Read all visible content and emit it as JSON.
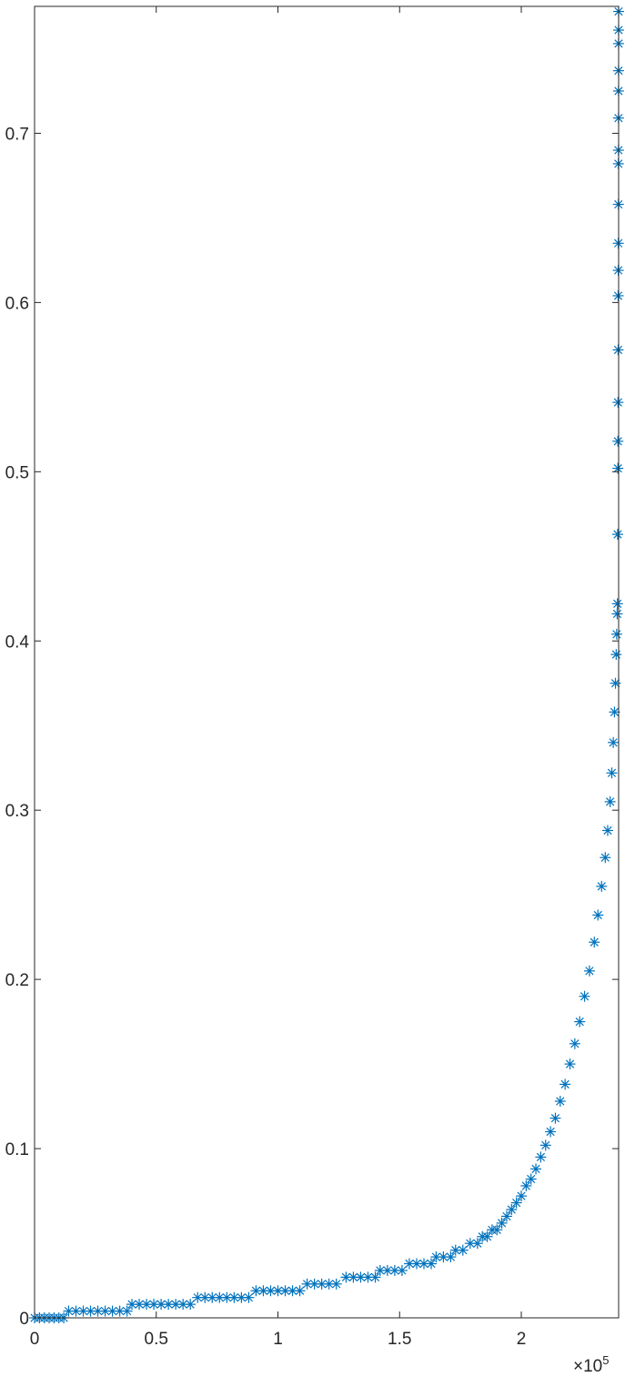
{
  "chart_data": {
    "type": "scatter",
    "title": "",
    "xlabel": "",
    "ylabel": "",
    "xlim": [
      0,
      240000
    ],
    "ylim": [
      0,
      0.775
    ],
    "grid": false,
    "legend": "none",
    "marker": "asterisk",
    "marker_color": "#0072BD",
    "x_exponent_label": "×10",
    "x_exponent_power": "5",
    "x_ticks": [
      {
        "value": 0,
        "label": "0"
      },
      {
        "value": 50000,
        "label": "0.5"
      },
      {
        "value": 100000,
        "label": "1"
      },
      {
        "value": 150000,
        "label": "1.5"
      },
      {
        "value": 200000,
        "label": "2"
      }
    ],
    "y_ticks": [
      {
        "value": 0,
        "label": "0"
      },
      {
        "value": 0.1,
        "label": "0.1"
      },
      {
        "value": 0.2,
        "label": "0.2"
      },
      {
        "value": 0.3,
        "label": "0.3"
      },
      {
        "value": 0.4,
        "label": "0.4"
      },
      {
        "value": 0.5,
        "label": "0.5"
      },
      {
        "value": 0.6,
        "label": "0.6"
      },
      {
        "value": 0.7,
        "label": "0.7"
      }
    ],
    "series": [
      {
        "points": [
          [
            0,
            0
          ],
          [
            2000,
            0
          ],
          [
            4000,
            0
          ],
          [
            6000,
            0
          ],
          [
            8000,
            0
          ],
          [
            10000,
            0
          ],
          [
            12000,
            0
          ],
          [
            14000,
            0.004
          ],
          [
            17000,
            0.004
          ],
          [
            20000,
            0.004
          ],
          [
            23000,
            0.004
          ],
          [
            26000,
            0.004
          ],
          [
            29000,
            0.004
          ],
          [
            32000,
            0.004
          ],
          [
            35000,
            0.004
          ],
          [
            38000,
            0.004
          ],
          [
            40000,
            0.008
          ],
          [
            43000,
            0.008
          ],
          [
            46000,
            0.008
          ],
          [
            49000,
            0.008
          ],
          [
            52000,
            0.008
          ],
          [
            55000,
            0.008
          ],
          [
            58000,
            0.008
          ],
          [
            61000,
            0.008
          ],
          [
            64000,
            0.008
          ],
          [
            67000,
            0.012
          ],
          [
            70000,
            0.012
          ],
          [
            73000,
            0.012
          ],
          [
            76000,
            0.012
          ],
          [
            79000,
            0.012
          ],
          [
            82000,
            0.012
          ],
          [
            85000,
            0.012
          ],
          [
            88000,
            0.012
          ],
          [
            91000,
            0.016
          ],
          [
            94000,
            0.016
          ],
          [
            97000,
            0.016
          ],
          [
            100000,
            0.016
          ],
          [
            103000,
            0.016
          ],
          [
            106000,
            0.016
          ],
          [
            109000,
            0.016
          ],
          [
            112000,
            0.02
          ],
          [
            115000,
            0.02
          ],
          [
            118000,
            0.02
          ],
          [
            121000,
            0.02
          ],
          [
            124000,
            0.02
          ],
          [
            128000,
            0.024
          ],
          [
            131000,
            0.024
          ],
          [
            134000,
            0.024
          ],
          [
            137000,
            0.024
          ],
          [
            140000,
            0.024
          ],
          [
            142000,
            0.028
          ],
          [
            145000,
            0.028
          ],
          [
            148000,
            0.028
          ],
          [
            151000,
            0.028
          ],
          [
            154000,
            0.032
          ],
          [
            157000,
            0.032
          ],
          [
            160000,
            0.032
          ],
          [
            163000,
            0.032
          ],
          [
            165000,
            0.036
          ],
          [
            168000,
            0.036
          ],
          [
            171000,
            0.036
          ],
          [
            173000,
            0.04
          ],
          [
            176000,
            0.04
          ],
          [
            179000,
            0.044
          ],
          [
            182000,
            0.044
          ],
          [
            184000,
            0.048
          ],
          [
            186000,
            0.048
          ],
          [
            188000,
            0.052
          ],
          [
            190000,
            0.052
          ],
          [
            192000,
            0.056
          ],
          [
            194000,
            0.06
          ],
          [
            196000,
            0.064
          ],
          [
            198000,
            0.068
          ],
          [
            200000,
            0.072
          ],
          [
            202000,
            0.078
          ],
          [
            204000,
            0.082
          ],
          [
            206000,
            0.088
          ],
          [
            208000,
            0.095
          ],
          [
            210000,
            0.102
          ],
          [
            212000,
            0.11
          ],
          [
            214000,
            0.118
          ],
          [
            216000,
            0.128
          ],
          [
            218000,
            0.138
          ],
          [
            220000,
            0.15
          ],
          [
            222000,
            0.162
          ],
          [
            224000,
            0.175
          ],
          [
            226000,
            0.19
          ],
          [
            228000,
            0.205
          ],
          [
            230000,
            0.222
          ],
          [
            231500,
            0.238
          ],
          [
            233000,
            0.255
          ],
          [
            234500,
            0.272
          ],
          [
            235500,
            0.288
          ],
          [
            236500,
            0.305
          ],
          [
            237200,
            0.322
          ],
          [
            237800,
            0.34
          ],
          [
            238300,
            0.358
          ],
          [
            238700,
            0.375
          ],
          [
            239000,
            0.392
          ],
          [
            239200,
            0.404
          ],
          [
            239400,
            0.416
          ],
          [
            239500,
            0.422
          ],
          [
            239600,
            0.463
          ],
          [
            239700,
            0.502
          ],
          [
            239700,
            0.518
          ],
          [
            239750,
            0.541
          ],
          [
            239800,
            0.572
          ],
          [
            239800,
            0.604
          ],
          [
            239850,
            0.619
          ],
          [
            239850,
            0.635
          ],
          [
            239900,
            0.658
          ],
          [
            239900,
            0.682
          ],
          [
            239920,
            0.69
          ],
          [
            239940,
            0.709
          ],
          [
            239950,
            0.725
          ],
          [
            239960,
            0.737
          ],
          [
            239970,
            0.753
          ],
          [
            239980,
            0.761
          ],
          [
            239990,
            0.772
          ]
        ]
      }
    ]
  }
}
